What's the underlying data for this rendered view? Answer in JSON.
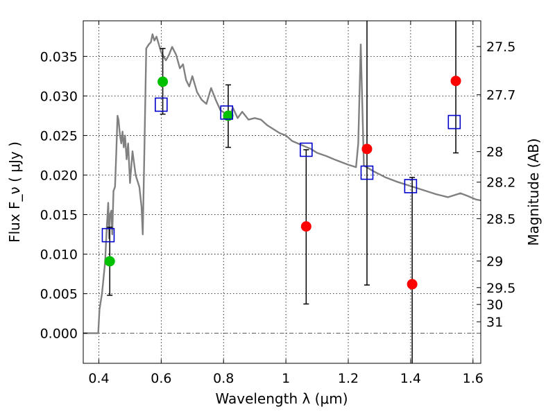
{
  "chart_data": {
    "type": "scatter",
    "xlabel": "Wavelength  λ (μm)",
    "ylabel": "Flux  F_ν  ( μJy )",
    "y2label": "Magnitude (AB)",
    "xlim": [
      0.35,
      1.625
    ],
    "ylim": [
      -0.0038,
      0.0395
    ],
    "grid": true,
    "x_ticks": [
      {
        "value": 0.4,
        "label": "0.4"
      },
      {
        "value": 0.6,
        "label": "0.6"
      },
      {
        "value": 0.8,
        "label": "0.8"
      },
      {
        "value": 1.0,
        "label": "1"
      },
      {
        "value": 1.2,
        "label": "1.2"
      },
      {
        "value": 1.4,
        "label": "1.4"
      },
      {
        "value": 1.6,
        "label": "1.6"
      }
    ],
    "y_ticks": [
      {
        "value": 0.0,
        "label": "0.000"
      },
      {
        "value": 0.005,
        "label": "0.005"
      },
      {
        "value": 0.01,
        "label": "0.010"
      },
      {
        "value": 0.015,
        "label": "0.015"
      },
      {
        "value": 0.02,
        "label": "0.020"
      },
      {
        "value": 0.025,
        "label": "0.025"
      },
      {
        "value": 0.03,
        "label": "0.030"
      },
      {
        "value": 0.035,
        "label": "0.035"
      }
    ],
    "y2_ticks": [
      {
        "flux": 0.03625,
        "label": "27.5"
      },
      {
        "flux": 0.03015,
        "label": "27.7"
      },
      {
        "flux": 0.02296,
        "label": "28"
      },
      {
        "flux": 0.0191,
        "label": "28.2"
      },
      {
        "flux": 0.01449,
        "label": "28.5"
      },
      {
        "flux": 0.00914,
        "label": "29"
      },
      {
        "flux": 0.00577,
        "label": "29.5"
      },
      {
        "flux": 0.00364,
        "label": "30"
      },
      {
        "flux": 0.00145,
        "label": "31"
      }
    ],
    "colors": {
      "sed": "#808080",
      "green": "#00c000",
      "red": "#ff0000",
      "model": "#0000cc",
      "errorbar": "#000000",
      "zeroline": "#555555"
    },
    "sed_curve": [
      [
        0.35,
        0.0
      ],
      [
        0.398,
        0.0
      ],
      [
        0.402,
        0.003
      ],
      [
        0.41,
        0.005
      ],
      [
        0.42,
        0.009
      ],
      [
        0.425,
        0.013
      ],
      [
        0.43,
        0.0165
      ],
      [
        0.433,
        0.012
      ],
      [
        0.436,
        0.015
      ],
      [
        0.44,
        0.0155
      ],
      [
        0.443,
        0.0125
      ],
      [
        0.447,
        0.018
      ],
      [
        0.452,
        0.0185
      ],
      [
        0.456,
        0.0228
      ],
      [
        0.46,
        0.0275
      ],
      [
        0.463,
        0.027
      ],
      [
        0.468,
        0.025
      ],
      [
        0.472,
        0.024
      ],
      [
        0.476,
        0.0255
      ],
      [
        0.48,
        0.0235
      ],
      [
        0.484,
        0.025
      ],
      [
        0.489,
        0.022
      ],
      [
        0.494,
        0.024
      ],
      [
        0.5,
        0.019
      ],
      [
        0.508,
        0.023
      ],
      [
        0.518,
        0.02
      ],
      [
        0.53,
        0.0185
      ],
      [
        0.537,
        0.016
      ],
      [
        0.541,
        0.0125
      ],
      [
        0.546,
        0.023
      ],
      [
        0.552,
        0.036
      ],
      [
        0.56,
        0.0365
      ],
      [
        0.567,
        0.0368
      ],
      [
        0.572,
        0.0378
      ],
      [
        0.578,
        0.037
      ],
      [
        0.585,
        0.0375
      ],
      [
        0.6,
        0.0355
      ],
      [
        0.615,
        0.0345
      ],
      [
        0.625,
        0.0352
      ],
      [
        0.635,
        0.0362
      ],
      [
        0.648,
        0.0352
      ],
      [
        0.66,
        0.0335
      ],
      [
        0.67,
        0.034
      ],
      [
        0.68,
        0.032
      ],
      [
        0.69,
        0.0312
      ],
      [
        0.7,
        0.0325
      ],
      [
        0.715,
        0.0305
      ],
      [
        0.73,
        0.0295
      ],
      [
        0.745,
        0.029
      ],
      [
        0.76,
        0.031
      ],
      [
        0.775,
        0.0295
      ],
      [
        0.79,
        0.0282
      ],
      [
        0.805,
        0.0278
      ],
      [
        0.82,
        0.0275
      ],
      [
        0.83,
        0.0285
      ],
      [
        0.845,
        0.0272
      ],
      [
        0.86,
        0.028
      ],
      [
        0.88,
        0.027
      ],
      [
        0.9,
        0.0272
      ],
      [
        0.92,
        0.027
      ],
      [
        0.94,
        0.0263
      ],
      [
        0.96,
        0.0258
      ],
      [
        0.98,
        0.0253
      ],
      [
        1.0,
        0.025
      ],
      [
        1.02,
        0.0243
      ],
      [
        1.05,
        0.0238
      ],
      [
        1.08,
        0.0233
      ],
      [
        1.1,
        0.0228
      ],
      [
        1.13,
        0.0224
      ],
      [
        1.16,
        0.0219
      ],
      [
        1.2,
        0.0213
      ],
      [
        1.225,
        0.021
      ],
      [
        1.232,
        0.024
      ],
      [
        1.24,
        0.0365
      ],
      [
        1.245,
        0.029
      ],
      [
        1.25,
        0.0212
      ],
      [
        1.28,
        0.0205
      ],
      [
        1.32,
        0.0197
      ],
      [
        1.36,
        0.0191
      ],
      [
        1.4,
        0.0186
      ],
      [
        1.44,
        0.0181
      ],
      [
        1.48,
        0.0176
      ],
      [
        1.52,
        0.0172
      ],
      [
        1.56,
        0.0177
      ],
      [
        1.58,
        0.0174
      ],
      [
        1.61,
        0.0169
      ],
      [
        1.625,
        0.0168
      ]
    ],
    "green_points": [
      {
        "x": 0.435,
        "y": 0.0091
      },
      {
        "x": 0.605,
        "y": 0.0318
      },
      {
        "x": 0.815,
        "y": 0.0275
      }
    ],
    "red_points": [
      {
        "x": 1.065,
        "y": 0.0135
      },
      {
        "x": 1.26,
        "y": 0.0233
      },
      {
        "x": 1.405,
        "y": 0.0062
      },
      {
        "x": 1.545,
        "y": 0.0319
      }
    ],
    "error_bars": [
      {
        "x": 0.435,
        "lo": 0.0048,
        "hi": 0.0134
      },
      {
        "x": 0.605,
        "lo": 0.0277,
        "hi": 0.036
      },
      {
        "x": 0.815,
        "lo": 0.0235,
        "hi": 0.0314
      },
      {
        "x": 1.065,
        "lo": 0.0037,
        "hi": 0.0232
      },
      {
        "x": 1.26,
        "lo": 0.0061,
        "hi": 0.0395
      },
      {
        "x": 1.405,
        "lo": -0.0038,
        "hi": 0.0197
      },
      {
        "x": 1.545,
        "lo": 0.0228,
        "hi": 0.0395
      }
    ],
    "model_points": [
      {
        "x": 0.43,
        "y": 0.0124
      },
      {
        "x": 0.6,
        "y": 0.0289
      },
      {
        "x": 0.81,
        "y": 0.0279
      },
      {
        "x": 1.065,
        "y": 0.0232
      },
      {
        "x": 1.26,
        "y": 0.0203
      },
      {
        "x": 1.4,
        "y": 0.0186
      },
      {
        "x": 1.54,
        "y": 0.0267
      }
    ]
  }
}
